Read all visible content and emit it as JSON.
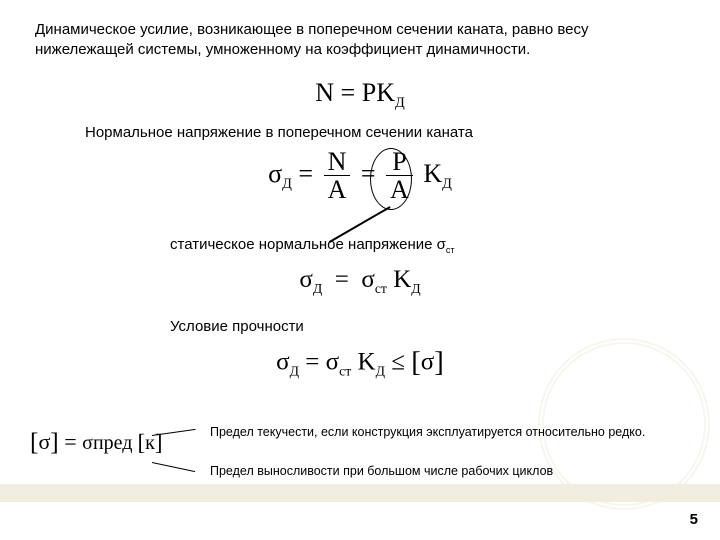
{
  "intro": "Динамическое усилие, возникающее в поперечном сечении каната, равно весу нижележащей системы, умноженному на коэффициент динамичности.",
  "formula1": {
    "lhs": "N",
    "rhs1": "P",
    "rhs2": "K",
    "sub": "Д"
  },
  "text2": "Нормальное напряжение в поперечном сечении каната",
  "formula2": {
    "lhs_sym": "σ",
    "lhs_sub": "Д",
    "frac1_num": "N",
    "frac1_den": "A",
    "frac2_num": "P",
    "frac2_den": "A",
    "k": "K",
    "k_sub": "Д"
  },
  "text3_prefix": "статическое нормальное напряжение σ",
  "text3_sub": "ст",
  "formula3": {
    "lhs_sym": "σ",
    "lhs_sub": "Д",
    "rhs1_sym": "σ",
    "rhs1_sub": "ст",
    "k": "K",
    "k_sub": "Д"
  },
  "text4": "Условие прочности",
  "formula4": {
    "lhs_sym": "σ",
    "lhs_sub": "Д",
    "rhs1_sym": "σ",
    "rhs1_sub": "ст",
    "k": "K",
    "k_sub": "Д",
    "le": "≤",
    "br_l": "[",
    "br_sig": "σ",
    "br_r": "]"
  },
  "formula5": {
    "br_l": "[",
    "sig": "σ",
    "br_r": "]",
    "eq": " = ",
    "num_sym": "σ",
    "num_sub": "пред",
    "den_l": "[",
    "den_k": "к",
    "den_r": "]"
  },
  "text5": "Предел текучести, если конструкция эксплуатируется относительно редко.",
  "text6": "Предел выносливости при большом числе рабочих циклов",
  "pagenum": "5",
  "colors": {
    "footer_band": "#f2eedf",
    "text": "#000000",
    "bg": "#ffffff"
  }
}
